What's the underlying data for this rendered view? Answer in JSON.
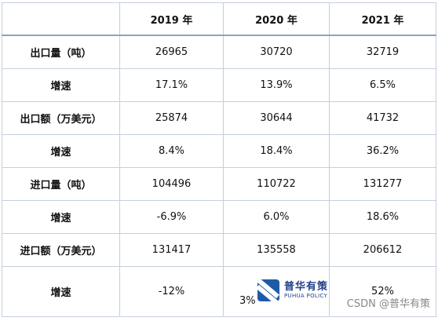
{
  "table": {
    "headers": [
      "",
      "2019 年",
      "2020 年",
      "2021 年"
    ],
    "rows": [
      {
        "label": "出口量（吨）",
        "values": [
          "26965",
          "30720",
          "32719"
        ]
      },
      {
        "label": "增速",
        "values": [
          "17.1%",
          "13.9%",
          "6.5%"
        ]
      },
      {
        "label": "出口额（万美元）",
        "values": [
          "25874",
          "30644",
          "41732"
        ]
      },
      {
        "label": "增速",
        "values": [
          "8.4%",
          "18.4%",
          "36.2%"
        ]
      },
      {
        "label": "进口量（吨）",
        "values": [
          "104496",
          "110722",
          "131277"
        ]
      },
      {
        "label": "增速",
        "values": [
          "-6.9%",
          "6.0%",
          "18.6%"
        ]
      },
      {
        "label": "进口额（万美元）",
        "values": [
          "131417",
          "135558",
          "206612"
        ]
      },
      {
        "label": "增速",
        "values": [
          "-12%",
          "",
          "52%"
        ]
      }
    ]
  },
  "overlay": {
    "partial_value": "3%",
    "logo_cn": "普华有策",
    "logo_en": "PUHUA POLICY"
  },
  "watermark": "CSDN @普华有策"
}
